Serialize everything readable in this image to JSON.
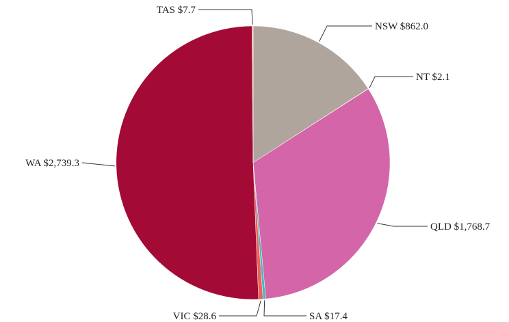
{
  "chart_data": {
    "type": "pie",
    "title": "",
    "start": "12 o'clock",
    "direction": "clockwise",
    "slices": [
      {
        "name": "NSW",
        "value": 862.0,
        "label": "NSW $862.0",
        "color": "#b0a59c"
      },
      {
        "name": "NT",
        "value": 2.1,
        "label": "NT $2.1",
        "color": "#ead8bc"
      },
      {
        "name": "QLD",
        "value": 1768.7,
        "label": "QLD $1,768.7",
        "color": "#d465a8"
      },
      {
        "name": "SA",
        "value": 17.4,
        "label": "SA $17.4",
        "color": "#40b8c0"
      },
      {
        "name": "VIC",
        "value": 28.6,
        "label": "VIC $28.6",
        "color": "#f0605a"
      },
      {
        "name": "WA",
        "value": 2739.3,
        "label": "WA $2,739.3",
        "color": "#a30a35"
      },
      {
        "name": "TAS",
        "value": 7.7,
        "label": "TAS $7.7",
        "color": "#eea890"
      }
    ]
  }
}
